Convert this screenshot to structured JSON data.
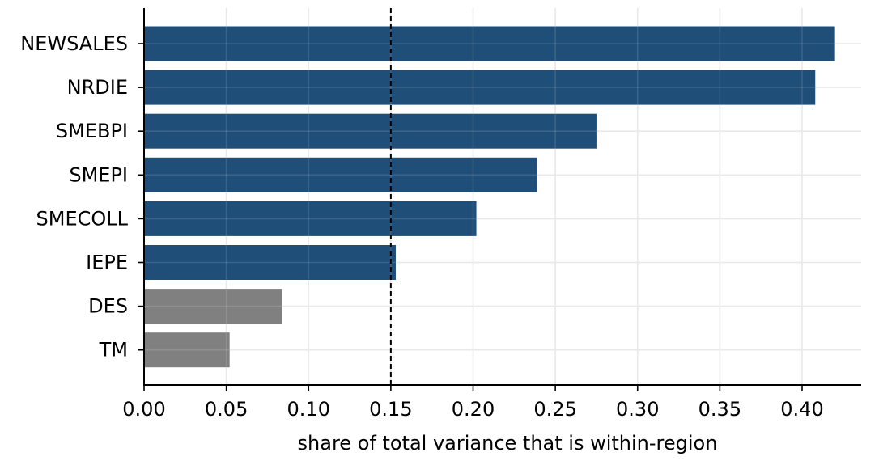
{
  "chart_data": {
    "type": "bar",
    "orientation": "horizontal",
    "title": "",
    "xlabel": "share of total variance that is within-region",
    "ylabel": "",
    "xlim": [
      0.0,
      0.42
    ],
    "grid": true,
    "categories": [
      "NEWSALES",
      "NRDIE",
      "SMEBPI",
      "SMEPI",
      "SMECOLL",
      "IEPE",
      "DES",
      "TM"
    ],
    "values": [
      0.42,
      0.408,
      0.275,
      0.239,
      0.202,
      0.153,
      0.084,
      0.052
    ],
    "bar_colors": [
      "#1f4e79",
      "#1f4e79",
      "#1f4e79",
      "#1f4e79",
      "#1f4e79",
      "#1f4e79",
      "#808080",
      "#808080"
    ],
    "x_ticks": [
      "0.00",
      "0.05",
      "0.10",
      "0.15",
      "0.20",
      "0.25",
      "0.30",
      "0.35",
      "0.40"
    ],
    "reference_line": {
      "x": 0.15,
      "style": "dashed",
      "color": "#000000"
    },
    "colors": {
      "highlight": "#1f4e79",
      "muted": "#808080",
      "grid": "#e6e6e6",
      "axis": "#000000"
    }
  }
}
